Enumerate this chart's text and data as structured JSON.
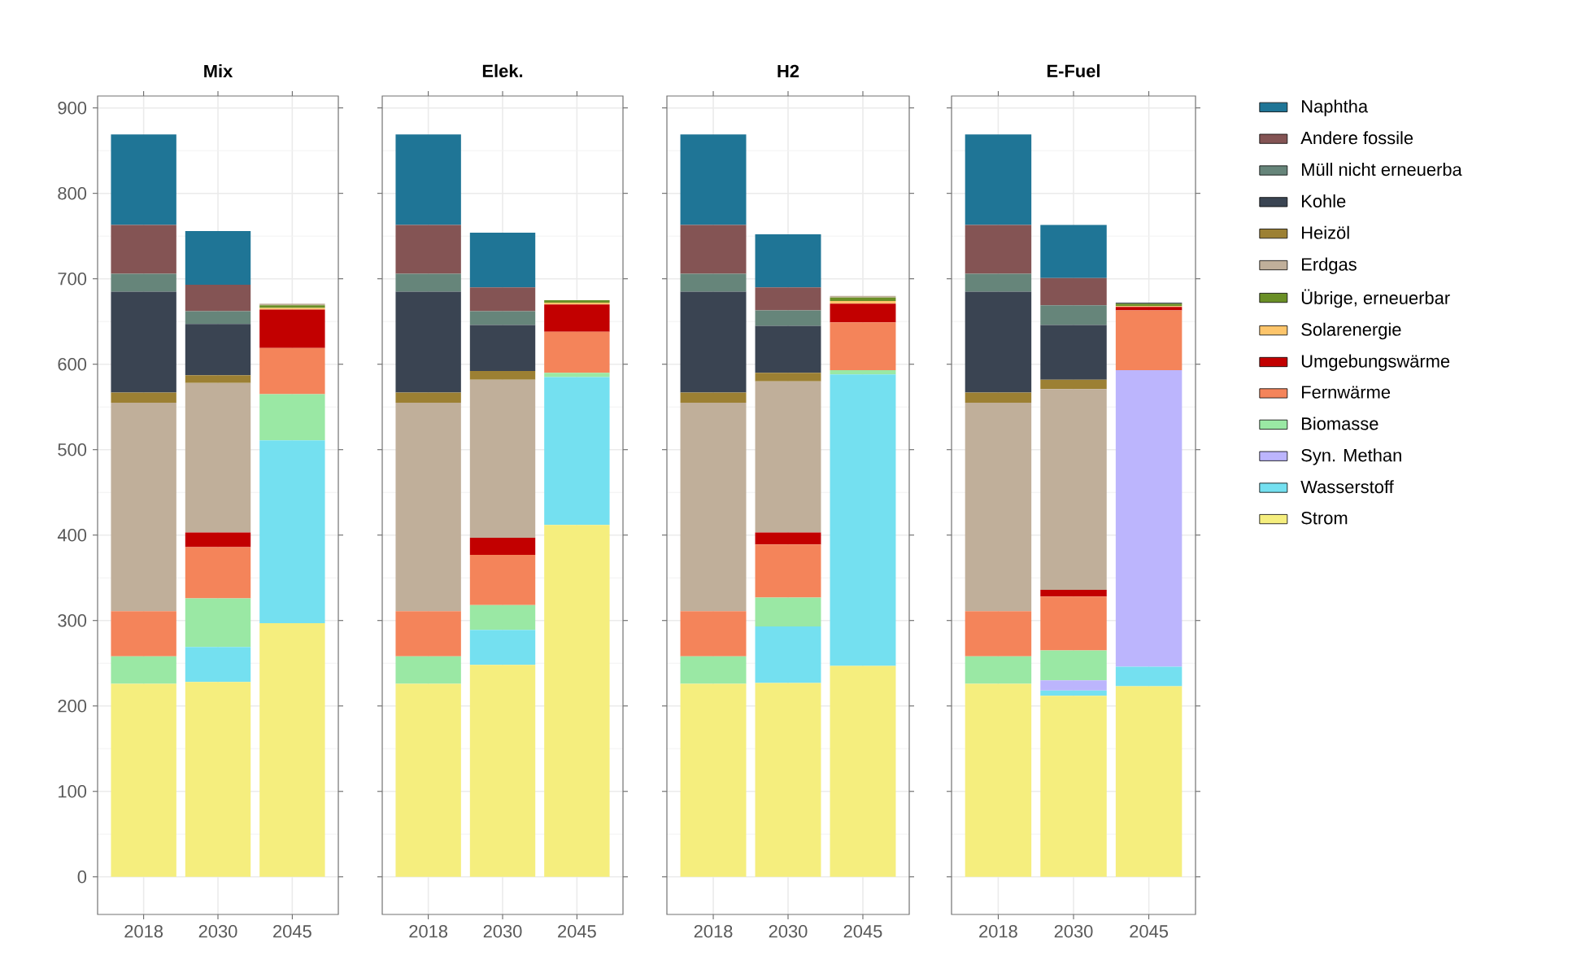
{
  "chart_data": [
    {
      "type": "bar",
      "title": "Mix",
      "stacked": true,
      "categories": [
        "2018",
        "2030",
        "2045"
      ],
      "ylim": [
        -44,
        914
      ],
      "yticks": [
        0,
        100,
        200,
        300,
        400,
        500,
        600,
        700,
        800,
        900
      ],
      "grid": true,
      "series": [
        {
          "color": "#f5ee7e",
          "values": [
            226,
            228,
            297
          ]
        },
        {
          "color": "#74e0f0",
          "values": [
            0,
            41,
            214
          ]
        },
        {
          "color": "#bcb5fd",
          "values": [
            0,
            0,
            0
          ]
        },
        {
          "color": "#9ae8a4",
          "values": [
            32,
            57,
            54
          ]
        },
        {
          "color": "#f4845a",
          "values": [
            53,
            60,
            54
          ]
        },
        {
          "color": "#c20000",
          "values": [
            0,
            17,
            45
          ]
        },
        {
          "color": "#fdc56b",
          "values": [
            0,
            0,
            2
          ]
        },
        {
          "color": "#6a8f26",
          "values": [
            0,
            0,
            3
          ]
        },
        {
          "color": "#c0af9a",
          "values": [
            244,
            175,
            2
          ]
        },
        {
          "color": "#9c8033",
          "values": [
            12,
            9,
            0
          ]
        },
        {
          "color": "#3a4452",
          "values": [
            118,
            60,
            0
          ]
        },
        {
          "color": "#66857a",
          "values": [
            21,
            15,
            0
          ]
        },
        {
          "color": "#845454",
          "values": [
            57,
            31,
            0
          ]
        },
        {
          "color": "#1f7596",
          "values": [
            106,
            63,
            0
          ]
        }
      ]
    },
    {
      "type": "bar",
      "title": "Elek.",
      "stacked": true,
      "categories": [
        "2018",
        "2030",
        "2045"
      ],
      "ylim": [
        -44,
        914
      ],
      "yticks": [
        0,
        100,
        200,
        300,
        400,
        500,
        600,
        700,
        800,
        900
      ],
      "grid": true,
      "tick_labels": "x",
      "series": [
        {
          "color": "#f5ee7e",
          "values": [
            226,
            248,
            412
          ]
        },
        {
          "color": "#74e0f0",
          "values": [
            0,
            41,
            173
          ]
        },
        {
          "color": "#bcb5fd",
          "values": [
            0,
            0,
            0
          ]
        },
        {
          "color": "#9ae8a4",
          "values": [
            32,
            29,
            5
          ]
        },
        {
          "color": "#f4845a",
          "values": [
            53,
            59,
            48
          ]
        },
        {
          "color": "#c20000",
          "values": [
            0,
            20,
            32
          ]
        },
        {
          "color": "#fdc56b",
          "values": [
            0,
            0,
            2
          ]
        },
        {
          "color": "#6a8f26",
          "values": [
            0,
            0,
            3
          ]
        },
        {
          "color": "#c0af9a",
          "values": [
            244,
            185,
            0
          ]
        },
        {
          "color": "#9c8033",
          "values": [
            12,
            10,
            0
          ]
        },
        {
          "color": "#3a4452",
          "values": [
            118,
            54,
            0
          ]
        },
        {
          "color": "#66857a",
          "values": [
            21,
            16,
            0
          ]
        },
        {
          "color": "#845454",
          "values": [
            57,
            28,
            0
          ]
        },
        {
          "color": "#1f7596",
          "values": [
            106,
            64,
            0
          ]
        }
      ]
    },
    {
      "type": "bar",
      "title": "H2",
      "stacked": true,
      "categories": [
        "2018",
        "2030",
        "2045"
      ],
      "ylim": [
        -44,
        914
      ],
      "yticks": [
        0,
        100,
        200,
        300,
        400,
        500,
        600,
        700,
        800,
        900
      ],
      "grid": true,
      "tick_labels": "x",
      "series": [
        {
          "color": "#f5ee7e",
          "values": [
            226,
            227,
            247
          ]
        },
        {
          "color": "#74e0f0",
          "values": [
            0,
            66,
            341
          ]
        },
        {
          "color": "#bcb5fd",
          "values": [
            0,
            0,
            0
          ]
        },
        {
          "color": "#9ae8a4",
          "values": [
            32,
            34,
            5
          ]
        },
        {
          "color": "#f4845a",
          "values": [
            53,
            62,
            56
          ]
        },
        {
          "color": "#c20000",
          "values": [
            0,
            14,
            22
          ]
        },
        {
          "color": "#fdc56b",
          "values": [
            0,
            0,
            3
          ]
        },
        {
          "color": "#6a8f26",
          "values": [
            0,
            0,
            4
          ]
        },
        {
          "color": "#c0af9a",
          "values": [
            244,
            177,
            2
          ]
        },
        {
          "color": "#9c8033",
          "values": [
            12,
            10,
            0
          ]
        },
        {
          "color": "#3a4452",
          "values": [
            118,
            55,
            0
          ]
        },
        {
          "color": "#66857a",
          "values": [
            21,
            18,
            0
          ]
        },
        {
          "color": "#845454",
          "values": [
            57,
            27,
            0
          ]
        },
        {
          "color": "#1f7596",
          "values": [
            106,
            62,
            0
          ]
        }
      ]
    },
    {
      "type": "bar",
      "title": "E-Fuel",
      "stacked": true,
      "categories": [
        "2018",
        "2030",
        "2045"
      ],
      "ylim": [
        -44,
        914
      ],
      "yticks": [
        0,
        100,
        200,
        300,
        400,
        500,
        600,
        700,
        800,
        900
      ],
      "grid": true,
      "tick_labels": "x",
      "legend": "right",
      "series": [
        {
          "name": "Strom",
          "color": "#f5ee7e",
          "values": [
            226,
            212,
            223
          ]
        },
        {
          "name": "Wasserstoff",
          "color": "#74e0f0",
          "values": [
            0,
            6,
            23
          ]
        },
        {
          "name": "Syn. Methan",
          "color": "#bcb5fd",
          "values": [
            0,
            12,
            347
          ]
        },
        {
          "name": "Biomasse",
          "color": "#9ae8a4",
          "values": [
            32,
            35,
            0
          ]
        },
        {
          "name": "Fernwärme",
          "color": "#f4845a",
          "values": [
            53,
            63,
            70
          ]
        },
        {
          "name": "Umgebungswärme",
          "color": "#c20000",
          "values": [
            0,
            8,
            4
          ]
        },
        {
          "name": "Solarenergie",
          "color": "#fdc56b",
          "values": [
            0,
            0,
            1
          ]
        },
        {
          "name": "Übrige, erneuerbar",
          "color": "#6a8f26",
          "values": [
            0,
            0,
            3
          ]
        },
        {
          "name": "Erdgas",
          "color": "#c0af9a",
          "values": [
            244,
            235,
            0
          ]
        },
        {
          "name": "Heizöl",
          "color": "#9c8033",
          "values": [
            12,
            11,
            0
          ]
        },
        {
          "name": "Kohle",
          "color": "#3a4452",
          "values": [
            118,
            64,
            1
          ]
        },
        {
          "name": "Müll nicht erneuerba",
          "color": "#66857a",
          "values": [
            21,
            23,
            0
          ]
        },
        {
          "name": "Andere fossile",
          "color": "#845454",
          "values": [
            57,
            32,
            0
          ]
        },
        {
          "name": "Naphtha",
          "color": "#1f7596",
          "values": [
            106,
            62,
            0
          ]
        }
      ]
    }
  ]
}
